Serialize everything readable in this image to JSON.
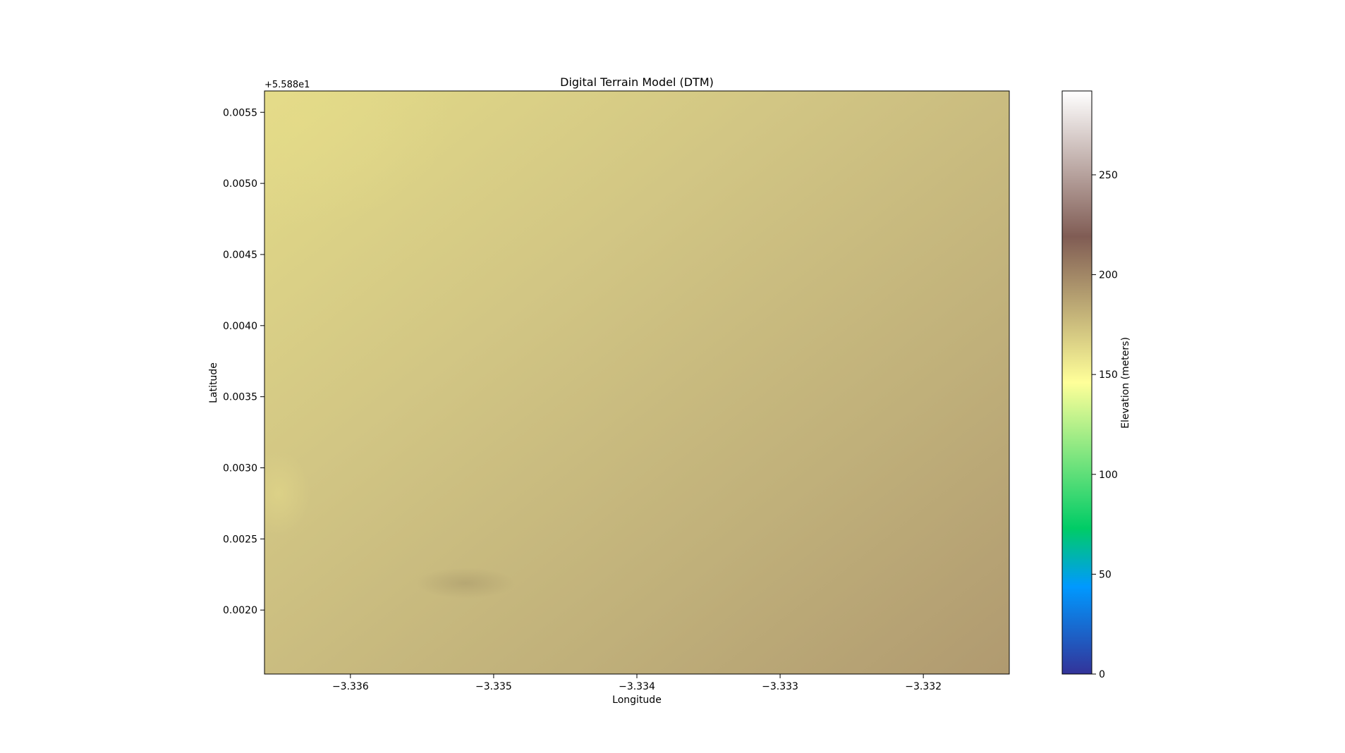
{
  "chart_data": {
    "type": "heatmap",
    "title": "Digital Terrain Model (DTM)",
    "xlabel": "Longitude",
    "ylabel": "Latitude",
    "y_offset_label": "+5.588e1",
    "xlim": [
      -3.3366,
      -3.3314
    ],
    "ylim": [
      0.00155,
      0.00565
    ],
    "x_ticks": [
      {
        "value": -3.336,
        "label": "−3.336"
      },
      {
        "value": -3.335,
        "label": "−3.335"
      },
      {
        "value": -3.334,
        "label": "−3.334"
      },
      {
        "value": -3.333,
        "label": "−3.333"
      },
      {
        "value": -3.332,
        "label": "−3.332"
      }
    ],
    "y_ticks": [
      {
        "value": 0.002,
        "label": "0.0020"
      },
      {
        "value": 0.0025,
        "label": "0.0025"
      },
      {
        "value": 0.003,
        "label": "0.0030"
      },
      {
        "value": 0.0035,
        "label": "0.0035"
      },
      {
        "value": 0.004,
        "label": "0.0040"
      },
      {
        "value": 0.0045,
        "label": "0.0045"
      },
      {
        "value": 0.005,
        "label": "0.0050"
      },
      {
        "value": 0.0055,
        "label": "0.0055"
      }
    ],
    "colorbar": {
      "label": "Elevation (meters)",
      "colormap": "terrain",
      "range": [
        0,
        292
      ],
      "ticks": [
        {
          "value": 0,
          "label": "0"
        },
        {
          "value": 50,
          "label": "50"
        },
        {
          "value": 100,
          "label": "100"
        },
        {
          "value": 150,
          "label": "150"
        },
        {
          "value": 200,
          "label": "200"
        },
        {
          "value": 250,
          "label": "250"
        }
      ]
    },
    "elevation_trend": {
      "top_left": 165,
      "top_right": 180,
      "bottom_left": 190,
      "bottom_right": 200
    }
  }
}
